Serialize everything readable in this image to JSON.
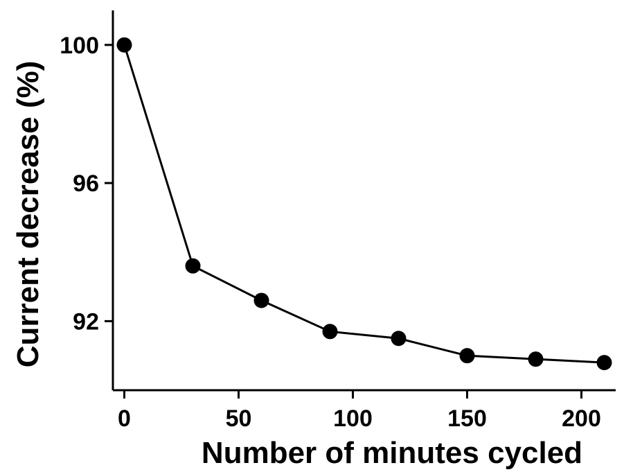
{
  "chart_data": {
    "type": "line",
    "xlabel": "Number of minutes cycled",
    "ylabel": "Current decrease (%)",
    "xlim": [
      -5,
      215
    ],
    "ylim": [
      90,
      101
    ],
    "xticks": [
      0,
      50,
      100,
      150,
      200
    ],
    "yticks": [
      92,
      96,
      100
    ],
    "grid": false,
    "series": [
      {
        "x": [
          0,
          30,
          60,
          90,
          120,
          150,
          180,
          210
        ],
        "values": [
          100,
          93.6,
          92.6,
          91.7,
          91.5,
          91.0,
          90.9,
          90.8
        ],
        "color": "#000000",
        "marker": "filled-circle"
      }
    ]
  }
}
